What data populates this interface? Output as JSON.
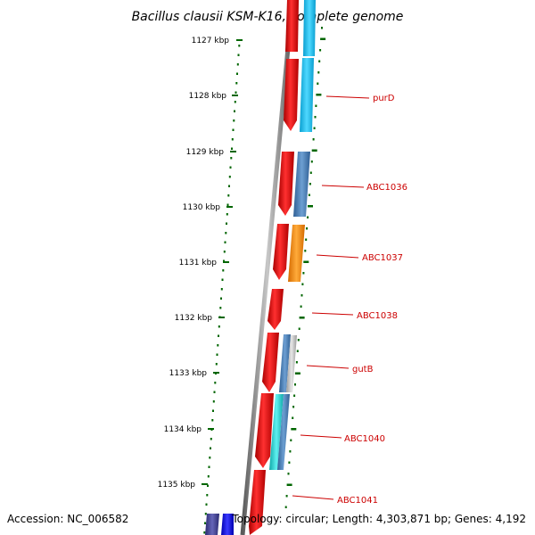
{
  "title": "Bacillus clausii KSM-K16, complete genome",
  "footer": {
    "accession": "Accession: NC_006582",
    "topology": "Topology: circular; Length: 4,303,871 bp; Genes: 4,192"
  },
  "scale": {
    "unit": "kbp",
    "ticks": [
      {
        "label": "1127 kbp"
      },
      {
        "label": "1128 kbp"
      },
      {
        "label": "1129 kbp"
      },
      {
        "label": "1130 kbp"
      },
      {
        "label": "1131 kbp"
      },
      {
        "label": "1132 kbp"
      },
      {
        "label": "1133 kbp"
      },
      {
        "label": "1134 kbp"
      },
      {
        "label": "1135 kbp"
      }
    ]
  },
  "gene_labels": [
    {
      "name": "purD"
    },
    {
      "name": "ABC1036"
    },
    {
      "name": "ABC1037"
    },
    {
      "name": "ABC1038"
    },
    {
      "name": "gutB"
    },
    {
      "name": "ABC1040"
    },
    {
      "name": "ABC1041"
    }
  ],
  "colors": {
    "background": "#ffffff",
    "backbone": "#8a8a8a",
    "forward_gene": "#ee0000",
    "label": "#cc0000",
    "tick": "#006600",
    "cog_light_blue": "#22c4f4",
    "cog_steel_blue": "#4a7fb6",
    "cog_orange": "#ff8c00",
    "cog_grey": "#bdbdbd",
    "cog_cyan": "#22d4d4",
    "cog_navy": "#3a3a8c",
    "cog_blue": "#0000ee"
  }
}
